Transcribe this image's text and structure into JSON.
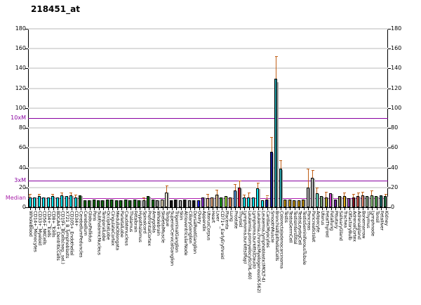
{
  "title": "218451_at",
  "y_axis": {
    "min": 0,
    "max": 180,
    "step": 20,
    "ticks": [
      0,
      20,
      40,
      60,
      80,
      100,
      120,
      140,
      160,
      180
    ]
  },
  "ref_lines": [
    {
      "id": "10xM",
      "label": "10xM",
      "value": 90,
      "line_color": "#8800a0",
      "label_color": "#8800a0"
    },
    {
      "id": "3xM",
      "label": "3xM",
      "value": 27,
      "line_color": "#8800a0",
      "label_color": "#8800a0"
    },
    {
      "id": "Median",
      "label": "Median",
      "value": 9,
      "line_color": "#b020b0",
      "label_color": "#aa22aa"
    }
  ],
  "style_colors": {
    "gridline": "#dcdcdc",
    "error_bar": "#c06018",
    "replicate_shadow": "#a8a8a8"
  },
  "chart_data": {
    "type": "bar",
    "title": "218451_at",
    "xlabel": "",
    "ylabel": "",
    "ylim": [
      0,
      180
    ],
    "grid": true,
    "categories": [
      "WholeBlood",
      "CD14+_Monocytes",
      "CD33+_Myeloid",
      "CD56+_NKCells",
      "CD4+_Tcells",
      "CD8+_Tcells",
      "BDCA4+_DentriticCells",
      "CD19+_BCells(neg._sel.)",
      "X721_B_lymphoblasts",
      "CD105+_Endothelial",
      "CD34+",
      "CerebellumPeduncles",
      "Cerebellum",
      "GlobusPallidus",
      "Pons",
      "SubthalamicNucleus",
      "TemporalLobe",
      "OccipitalLobe",
      "CingulateCortex",
      "MedullaOblongata",
      "ParietalLobe",
      "Caudatenucleus",
      "Thalamus",
      "Fetalbrain",
      "Hypothalamus",
      "Spinalcord",
      "PrefrontalCortex",
      "Amygdala",
      "Wholebrain",
      "SkeletalMuscle",
      "Tongue",
      "SuperiorCervicalGanglion",
      "TrigeminalGanglion",
      "Skin",
      "AtrioventricularNode",
      "CiliaryGanglion",
      "DorsalRootGanglion",
      "Ovary",
      "Appendix",
      "UterusCorpus",
      "Heart",
      "Liver",
      "CD71+_EarlyErythroid",
      "Placenta",
      "Lung",
      "Prostate",
      "Thyroid",
      "Lymphoma,burkitts(Raji)",
      "Leukemia,promyelocytic(HL-60)",
      "Lymphoma,burkitts(Daudi)",
      "Leukemia,chronicMyelogenous(K-562)",
      "Leukemia,lymphoblastic(MOLT-4)",
      "CardiacMyocytes",
      "SmoothMuscle",
      "BronchialEpithelialCells",
      "Colorectaladenocarcinoma",
      "Testis",
      "TestisGermCell",
      "TestisInterstitial",
      "TestisLeydigCell",
      "TestisSeminiferousTubule",
      "Pancreas",
      "PancreaticIslet",
      "Adipocyte",
      "Uterus",
      "FetalThyroid",
      "Fetallung",
      "Pituitary",
      "SalivaryGland",
      "Trachea",
      "OlfactoryBulb",
      "AdrenalCortex",
      "Adrenalgland",
      "Bonemarrow",
      "Thymus",
      "Lymphnode",
      "Tonsil",
      "Fetalliver",
      "Kidney"
    ],
    "values": [
      10,
      10,
      11,
      10,
      10,
      11,
      10,
      12,
      11,
      12,
      10,
      12,
      7,
      7,
      8,
      7,
      7,
      8,
      8,
      7,
      7,
      8,
      7,
      8,
      7,
      7,
      11,
      8,
      7,
      8,
      15,
      7,
      8,
      7,
      8,
      7,
      7,
      7,
      10,
      9,
      10,
      13,
      10,
      11,
      10,
      17,
      20,
      10,
      10,
      10,
      19,
      7,
      8,
      56,
      130,
      39,
      8,
      8,
      7,
      7,
      8,
      20,
      30,
      14,
      11,
      10,
      14,
      8,
      11,
      11,
      9,
      10,
      11,
      12,
      11,
      12,
      11,
      12,
      11
    ],
    "errors_top": [
      13,
      null,
      13,
      null,
      null,
      13,
      null,
      14,
      null,
      14,
      12,
      null,
      null,
      null,
      null,
      null,
      null,
      null,
      null,
      null,
      null,
      null,
      null,
      null,
      null,
      9,
      null,
      null,
      null,
      null,
      21,
      null,
      null,
      null,
      null,
      null,
      null,
      null,
      null,
      13,
      null,
      17,
      null,
      null,
      null,
      23,
      26,
      12,
      14,
      null,
      24,
      null,
      11,
      70,
      152,
      47,
      null,
      null,
      null,
      null,
      null,
      38,
      37,
      19,
      null,
      15,
      null,
      null,
      null,
      14,
      null,
      13,
      14,
      15,
      null,
      16,
      null,
      null,
      13
    ],
    "bar_colors": [
      "#00e5ee",
      "#00e5ee",
      "#00e5ee",
      "#00e5ee",
      "#00e5ee",
      "#00e5ee",
      "#00e5ee",
      "#00e5ee",
      "#00e5ee",
      "#00e5ee",
      "#00e5ee",
      "#0f6b0f",
      "#0f6b0f",
      "#0f6b0f",
      "#0f6b0f",
      "#0f6b0f",
      "#0f6b0f",
      "#0f6b0f",
      "#0f6b0f",
      "#0f6b0f",
      "#0f6b0f",
      "#0f6b0f",
      "#0f6b0f",
      "#0f6b0f",
      "#0f6b0f",
      "#999999",
      "#0f6b0f",
      "#0f6b0f",
      "#9a9a9a",
      "#f0e2c0",
      "#f7f3e1",
      "#141414",
      "#141414",
      "#a0a0a0",
      "#141414",
      "#8f8f8f",
      "#141414",
      "#2222ee",
      "#8833cc",
      "#f5c79a",
      "#f0b488",
      "#e8c79a",
      "#22aa22",
      "#9ce044",
      "#f08850",
      "#5599dd",
      "#e8193c",
      "#00e5ee",
      "#00e5ee",
      "#00e5ee",
      "#00e5ee",
      "#00e5ee",
      "#181890",
      "#181890",
      "#20939b",
      "#2aa0a8",
      "#c8960c",
      "#c8960c",
      "#c8960c",
      "#c8960c",
      "#c8960c",
      "#b8b8b8",
      "#c2c2c2",
      "#66e0c8",
      "#7daa7d",
      "#b0a820",
      "#cc44cc",
      "#662299",
      "#8a8a55",
      "#e0a818",
      "#9944bb",
      "#881122",
      "#d4584a",
      "#f09078",
      "#88aa88",
      "#99cc88",
      "#55aa55",
      "#1f6f6f",
      "#2a7a4a"
    ]
  }
}
